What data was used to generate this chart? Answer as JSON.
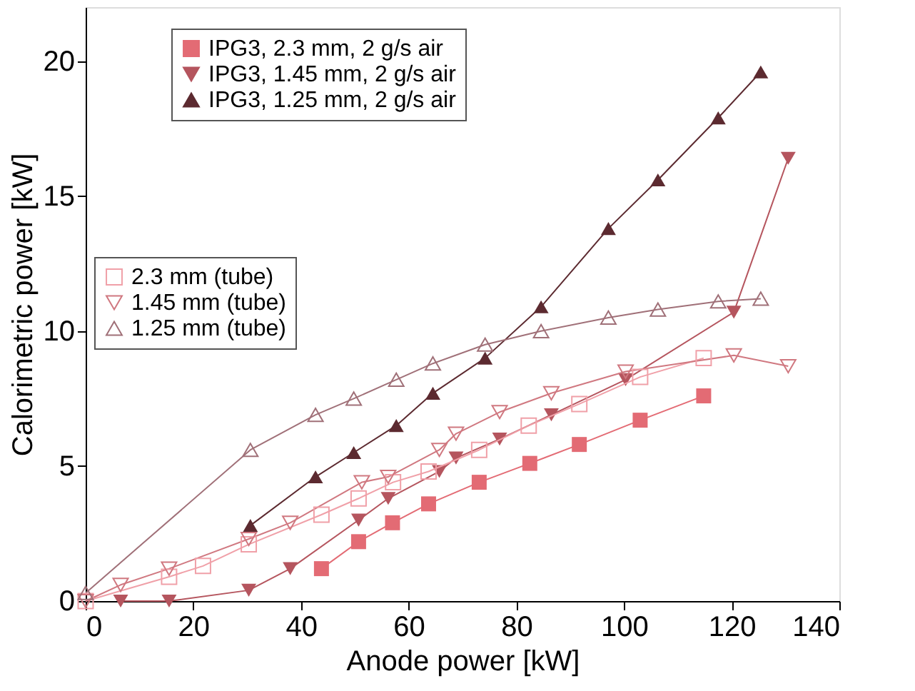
{
  "chart_data": {
    "type": "line",
    "xlabel": "Anode power [kW]",
    "ylabel": "Calorimetric power [kW]",
    "xlim": [
      0,
      140
    ],
    "xticks": [
      0,
      20,
      40,
      60,
      80,
      100,
      120,
      140
    ],
    "ylim": [
      0,
      22
    ],
    "yticks": [
      0,
      5,
      10,
      15,
      20
    ],
    "legend": "top left",
    "line_style": "solid",
    "series": [
      {
        "name": "IPG3, 2.3 mm, 2 g/s air",
        "color": "#e36b74",
        "marker": "square",
        "x": [
          43.8,
          50.7,
          57,
          63.7,
          73.1,
          82.5,
          91.7,
          103,
          114.8
        ],
        "values": [
          1.2,
          2.2,
          2.9,
          3.6,
          4.4,
          5.1,
          5.8,
          6.7,
          7.6
        ]
      },
      {
        "name": "IPG3, 1.45 mm, 2 g/s air",
        "color": "#b5555e",
        "marker": "triangle-down",
        "x": [
          6.5,
          15.5,
          30.3,
          38,
          50.7,
          56.2,
          65.7,
          68.8,
          76.9,
          86.5,
          100.3,
          120.4,
          130.5
        ],
        "values": [
          0,
          0,
          0.4,
          1.2,
          3.0,
          3.8,
          4.8,
          5.3,
          6.0,
          6.9,
          8.2,
          10.7,
          16.4
        ]
      },
      {
        "name": "IPG3, 1.25 mm, 2 g/s air",
        "color": "#5c2a30",
        "marker": "triangle-up",
        "x": [
          30.6,
          42.7,
          49.8,
          57.7,
          64.5,
          74.2,
          84.6,
          97.1,
          106.3,
          117.5,
          125.4
        ],
        "values": [
          2.8,
          4.6,
          5.5,
          6.5,
          7.7,
          9.0,
          10.9,
          13.8,
          15.6,
          17.9,
          19.6
        ]
      },
      {
        "name": "2.3 mm (tube)",
        "color": "#f0a0a8",
        "marker": "square-open",
        "x": [
          0,
          15.5,
          21.8,
          30.3,
          43.8,
          50.7,
          57.1,
          63.7,
          73.1,
          82.3,
          91.7,
          103,
          114.8
        ],
        "values": [
          0,
          0.9,
          1.3,
          2.1,
          3.2,
          3.8,
          4.4,
          4.8,
          5.6,
          6.5,
          7.3,
          8.3,
          9.0
        ]
      },
      {
        "name": "1.45 mm (tube)",
        "color": "#d07880",
        "marker": "triangle-down-open",
        "x": [
          0,
          6.5,
          15.5,
          30.3,
          38,
          51.3,
          56.2,
          65.7,
          68.8,
          76.9,
          86.5,
          100.3,
          120.4,
          130.5
        ],
        "values": [
          0,
          0.6,
          1.2,
          2.3,
          2.9,
          4.4,
          4.6,
          5.6,
          6.2,
          7.0,
          7.7,
          8.5,
          9.1,
          8.7
        ]
      },
      {
        "name": "1.25 mm (tube)",
        "color": "#a07078",
        "marker": "triangle-up-open",
        "x": [
          0,
          30.6,
          42.7,
          49.8,
          57.7,
          64.5,
          74.2,
          84.6,
          97.1,
          106.3,
          117.5,
          125.4
        ],
        "values": [
          0.3,
          5.6,
          6.9,
          7.5,
          8.2,
          8.8,
          9.5,
          10.0,
          10.5,
          10.8,
          11.1,
          11.2
        ]
      }
    ]
  }
}
